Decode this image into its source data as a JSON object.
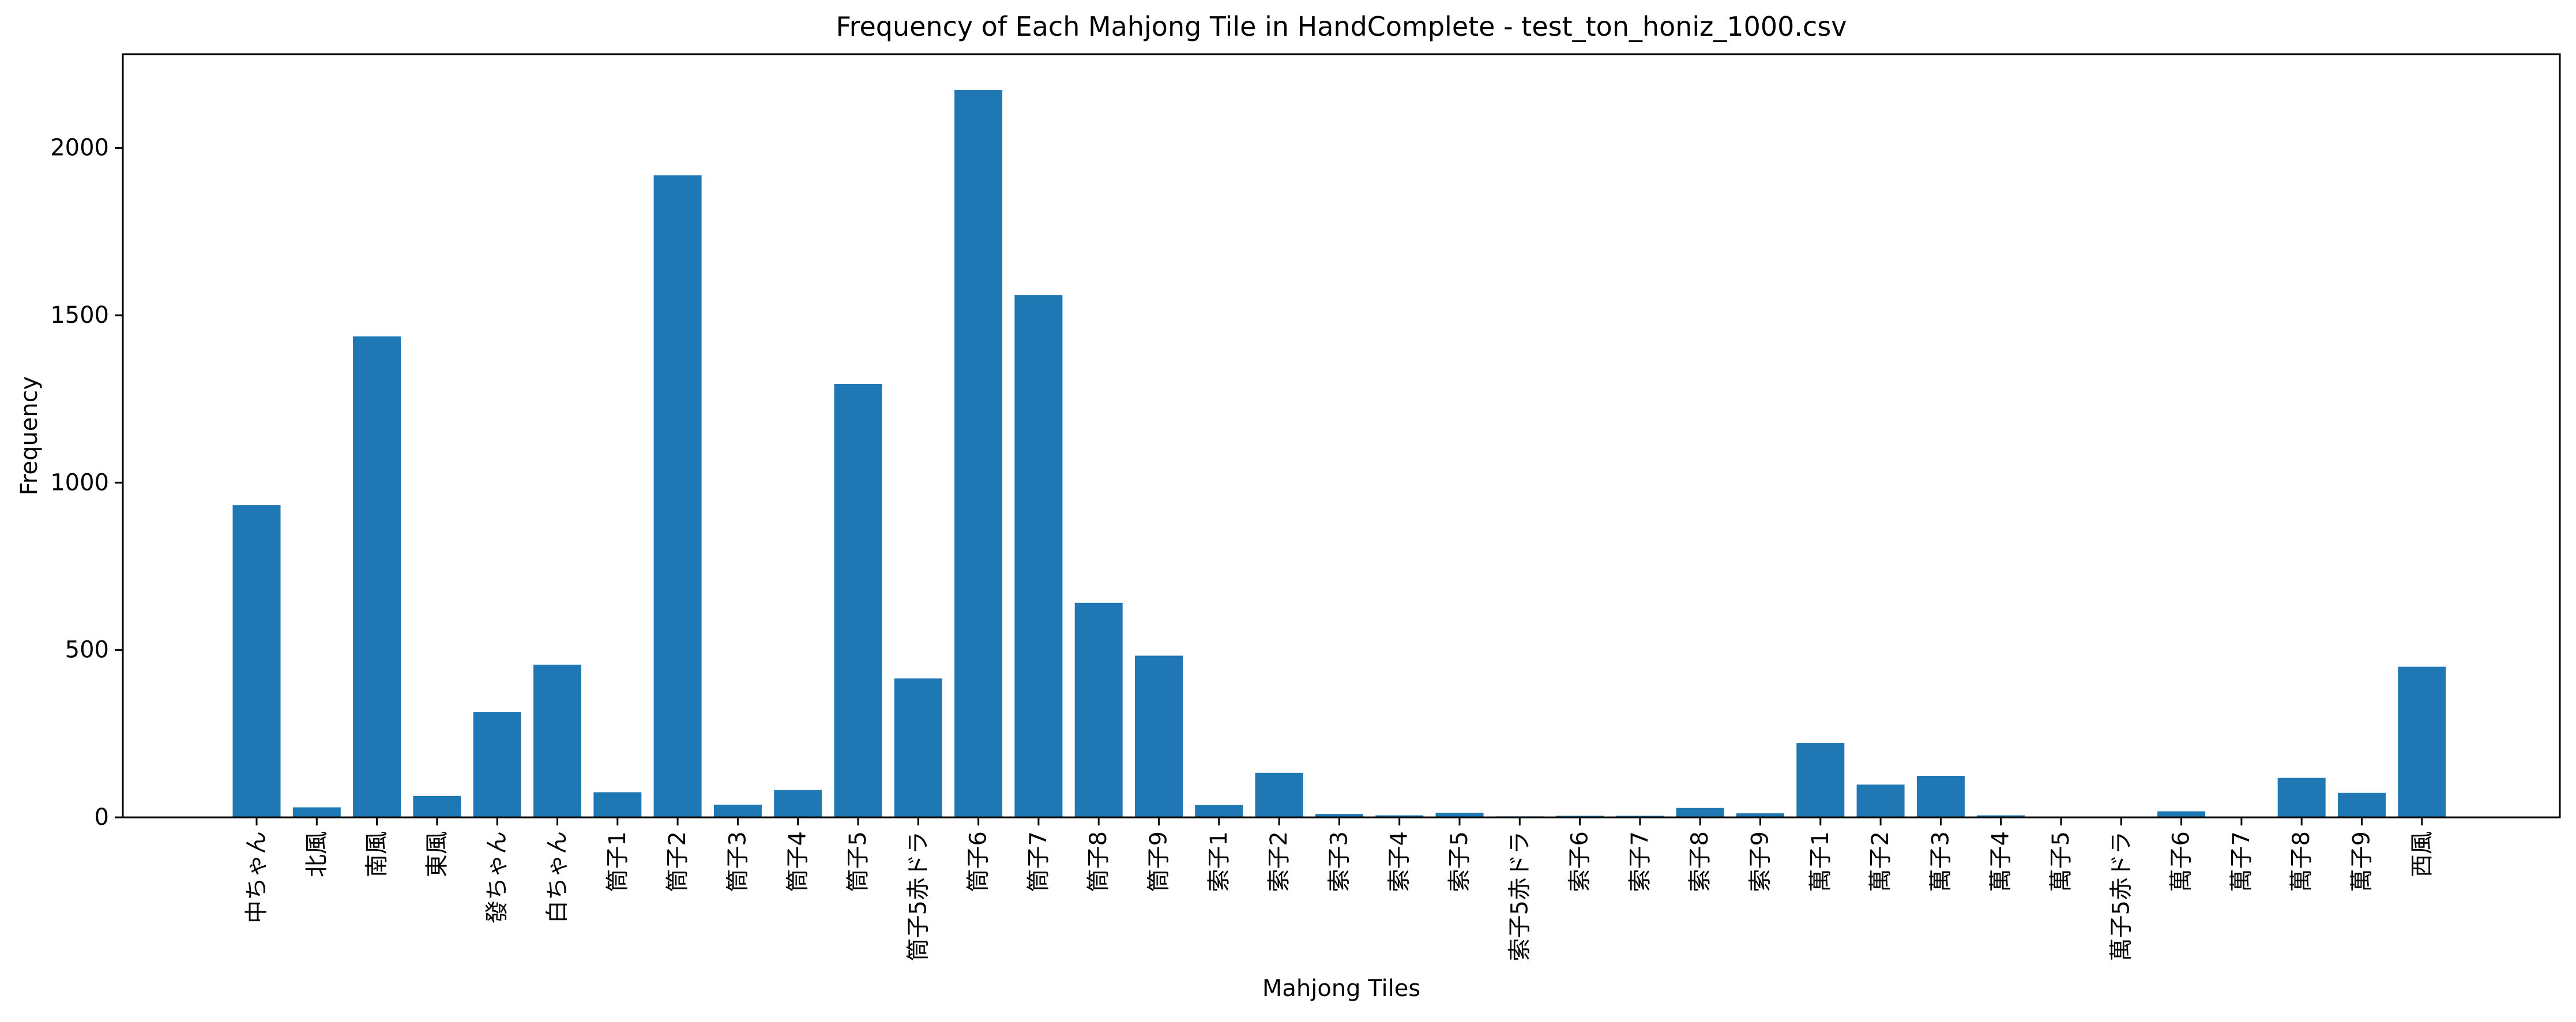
{
  "chart_data": {
    "type": "bar",
    "title": "Frequency of Each Mahjong Tile in HandComplete - test_ton_honiz_1000.csv",
    "xlabel": "Mahjong Tiles",
    "ylabel": "Frequency",
    "ylim": [
      0,
      2280
    ],
    "yticks": [
      0,
      500,
      1000,
      1500,
      2000
    ],
    "grid": false,
    "legend": "none",
    "bar_color": "#1f77b4",
    "categories": [
      "中ちゃん",
      "北風",
      "南風",
      "東風",
      "發ちゃん",
      "白ちゃん",
      "筒子1",
      "筒子2",
      "筒子3",
      "筒子4",
      "筒子5",
      "筒子5赤ドラ",
      "筒子6",
      "筒子7",
      "筒子8",
      "筒子9",
      "索子1",
      "索子2",
      "索子3",
      "索子4",
      "索子5",
      "索子5赤ドラ",
      "索子6",
      "索子7",
      "索子8",
      "索子9",
      "萬子1",
      "萬子2",
      "萬子3",
      "萬子4",
      "萬子5",
      "萬子5赤ドラ",
      "萬子6",
      "萬子7",
      "萬子8",
      "萬子9",
      "西風"
    ],
    "values": [
      933,
      30,
      1437,
      64,
      315,
      456,
      75,
      1918,
      38,
      82,
      1295,
      415,
      2173,
      1560,
      641,
      483,
      37,
      133,
      10,
      6,
      14,
      3,
      5,
      5,
      28,
      12,
      222,
      98,
      124,
      6,
      2,
      2,
      18,
      2,
      118,
      73,
      450
    ]
  }
}
